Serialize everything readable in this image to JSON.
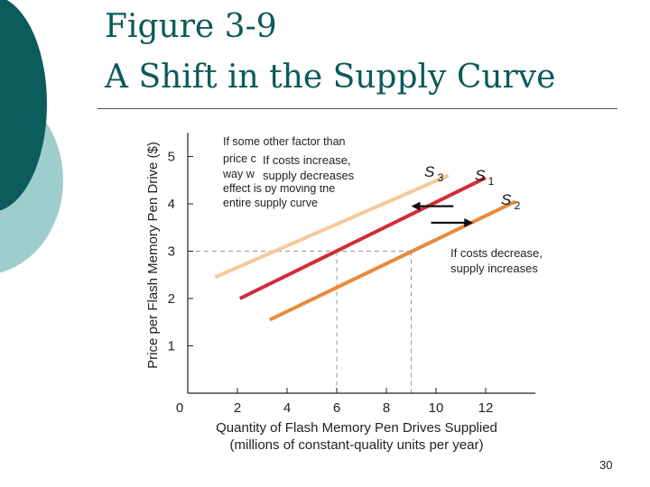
{
  "slide": {
    "title_line1": "Figure 3-9",
    "title_line2": "A Shift in the Supply Curve",
    "page_number": "30"
  },
  "colors": {
    "title": "#0c5a5a",
    "decor_dark": "#0c5c5c",
    "decor_light": "#9ecdcd",
    "s1": "#d42b3a",
    "s2": "#e88a3c",
    "s3": "#f5c99a",
    "guide": "#999999"
  },
  "icons": {
    "shift_left": "arrow-left-icon",
    "shift_right": "arrow-right-icon"
  },
  "chart_data": {
    "type": "line",
    "xlabel_line1": "Quantity of Flash Memory Pen Drives Supplied",
    "xlabel_line2": "(millions of constant-quality units per year)",
    "ylabel": "Price per Flash Memory Pen Drive ($)",
    "xlim": [
      0,
      14
    ],
    "ylim": [
      0,
      5.5
    ],
    "x_ticks": [
      0,
      2,
      4,
      6,
      8,
      10,
      12
    ],
    "y_ticks": [
      1,
      2,
      3,
      4,
      5
    ],
    "grid": false,
    "series": [
      {
        "name": "S3",
        "label_main": "S",
        "label_sub": "3",
        "color": "#f5c99a",
        "x": [
          1.1,
          10.5
        ],
        "y": [
          2.45,
          4.6
        ]
      },
      {
        "name": "S1",
        "label_main": "S",
        "label_sub": "1",
        "color": "#d42b3a",
        "x": [
          2.1,
          12
        ],
        "y": [
          2.0,
          4.55
        ]
      },
      {
        "name": "S2",
        "label_main": "S",
        "label_sub": "2",
        "color": "#e88a3c",
        "x": [
          3.3,
          13.2
        ],
        "y": [
          1.55,
          4.05
        ]
      }
    ],
    "guides": {
      "y": 3,
      "x": [
        6,
        9
      ]
    },
    "shift_arrows": [
      {
        "direction": "left",
        "x_from": 10.7,
        "x_to": 9.0,
        "y": 3.95
      },
      {
        "direction": "right",
        "x_from": 9.8,
        "x_to": 11.5,
        "y": 3.6
      }
    ],
    "annotations": {
      "main": [
        "If some other factor than",
        "price c",
        "way w",
        "effect is by moving the",
        "entire supply curve"
      ],
      "increase": [
        "If costs increase,",
        "supply decreases"
      ],
      "decrease": [
        "If costs decrease,",
        "supply increases"
      ]
    }
  }
}
